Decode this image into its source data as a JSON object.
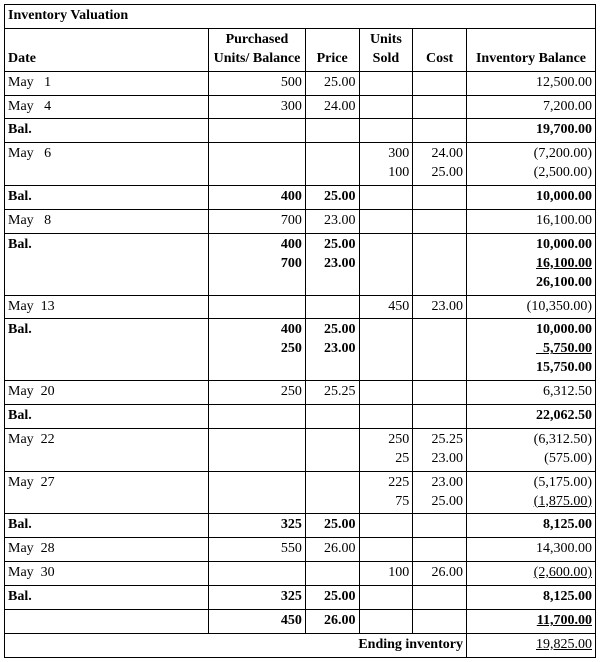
{
  "title": "Inventory Valuation",
  "headers": {
    "date": "Date",
    "purchased": "Purchased Units/ Balance",
    "price": "Price",
    "unitsSold": "Units Sold",
    "cost": "Cost",
    "invBalance": "Inventory Balance"
  },
  "endingLabel": "Ending inventory",
  "endingValue": "19,825.00",
  "rows": [
    {
      "date": "May   1",
      "units": [
        "500"
      ],
      "price": [
        "25.00"
      ],
      "sold": [],
      "cost": [],
      "bal": [
        "12,500.00"
      ]
    },
    {
      "date": "May   4",
      "units": [
        "300"
      ],
      "price": [
        "24.00"
      ],
      "sold": [],
      "cost": [],
      "bal": [
        "7,200.00"
      ]
    },
    {
      "date": "Bal.",
      "bold": true,
      "units": [],
      "price": [],
      "sold": [],
      "cost": [],
      "bal": [
        "19,700.00"
      ]
    },
    {
      "date": "May   6",
      "units": [],
      "price": [],
      "sold": [
        "300",
        "100"
      ],
      "cost": [
        "24.00",
        "25.00"
      ],
      "bal": [
        "(7,200.00)",
        "(2,500.00)"
      ]
    },
    {
      "date": "Bal.",
      "bold": true,
      "units": [
        "400"
      ],
      "price": [
        "25.00"
      ],
      "sold": [],
      "cost": [],
      "bal": [
        "10,000.00"
      ]
    },
    {
      "date": "May   8",
      "units": [
        "700"
      ],
      "price": [
        "23.00"
      ],
      "sold": [],
      "cost": [],
      "bal": [
        "16,100.00"
      ]
    },
    {
      "date": "Bal.",
      "bold": true,
      "units": [
        "400",
        "700"
      ],
      "price": [
        "25.00",
        "23.00"
      ],
      "sold": [],
      "cost": [],
      "bal": [
        "10,000.00",
        "16,100.00",
        "26,100.00"
      ],
      "balUline": [
        1
      ]
    },
    {
      "date": "May  13",
      "units": [],
      "price": [],
      "sold": [
        "450"
      ],
      "cost": [
        "23.00"
      ],
      "bal": [
        "(10,350.00)"
      ]
    },
    {
      "date": "Bal.",
      "bold": true,
      "units": [
        "400",
        "250"
      ],
      "price": [
        "25.00",
        "23.00"
      ],
      "sold": [],
      "cost": [],
      "bal": [
        "10,000.00",
        "  5,750.00",
        "15,750.00"
      ],
      "balUline": [
        1
      ]
    },
    {
      "date": "May  20",
      "units": [
        "250"
      ],
      "price": [
        "25.25"
      ],
      "sold": [],
      "cost": [],
      "bal": [
        "6,312.50"
      ]
    },
    {
      "date": "Bal.",
      "bold": true,
      "units": [],
      "price": [],
      "sold": [],
      "cost": [],
      "bal": [
        "22,062.50"
      ]
    },
    {
      "date": "May  22",
      "units": [],
      "price": [],
      "sold": [
        "250",
        "25"
      ],
      "cost": [
        "25.25",
        "23.00"
      ],
      "bal": [
        "(6,312.50)",
        "(575.00)"
      ]
    },
    {
      "date": "May  27",
      "units": [],
      "price": [],
      "sold": [
        "225",
        "75"
      ],
      "cost": [
        "23.00",
        "25.00"
      ],
      "bal": [
        "(5,175.00)",
        "(1,875.00)"
      ],
      "balUline": [
        1
      ]
    },
    {
      "date": "Bal.",
      "bold": true,
      "units": [
        "325"
      ],
      "price": [
        "25.00"
      ],
      "sold": [],
      "cost": [],
      "bal": [
        "8,125.00"
      ]
    },
    {
      "date": "May  28",
      "units": [
        "550"
      ],
      "price": [
        "26.00"
      ],
      "sold": [],
      "cost": [],
      "bal": [
        "14,300.00"
      ]
    },
    {
      "date": "May  30",
      "units": [],
      "price": [],
      "sold": [
        "100"
      ],
      "cost": [
        "26.00"
      ],
      "bal": [
        "(2,600.00)"
      ],
      "balUline": [
        0
      ]
    },
    {
      "date": "Bal.",
      "bold": true,
      "units": [
        "325"
      ],
      "price": [
        "25.00"
      ],
      "sold": [],
      "cost": [],
      "bal": [
        "8,125.00"
      ]
    },
    {
      "date": "",
      "bold": true,
      "units": [
        "450"
      ],
      "price": [
        "26.00"
      ],
      "sold": [],
      "cost": [],
      "bal": [
        "11,700.00"
      ],
      "balUline": [
        0
      ]
    }
  ]
}
